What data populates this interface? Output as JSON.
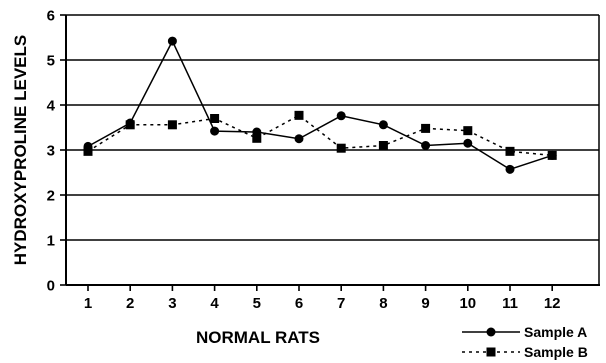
{
  "chart_data": {
    "type": "line",
    "title": "",
    "xlabel": "NORMAL RATS",
    "ylabel": "HYDROXYPROLINE LEVELS",
    "categories": [
      "1",
      "2",
      "3",
      "4",
      "5",
      "6",
      "7",
      "8",
      "9",
      "10",
      "11",
      "12"
    ],
    "ylim": [
      0,
      6
    ],
    "yticks": [
      "0",
      "1",
      "2",
      "3",
      "4",
      "5",
      "6"
    ],
    "grid": "horizontal",
    "legend_position": "bottom-right",
    "series": [
      {
        "name": "Sample A",
        "marker": "circle",
        "line": "solid",
        "color": "#000000",
        "values": [
          3.08,
          3.6,
          5.42,
          3.42,
          3.4,
          3.25,
          3.76,
          3.56,
          3.1,
          3.15,
          2.57,
          2.88
        ]
      },
      {
        "name": "Sample B",
        "marker": "square",
        "line": "dotted",
        "color": "#000000",
        "values": [
          2.97,
          3.56,
          3.56,
          3.7,
          3.26,
          3.77,
          3.04,
          3.1,
          3.48,
          3.43,
          2.97,
          2.88
        ]
      }
    ]
  }
}
